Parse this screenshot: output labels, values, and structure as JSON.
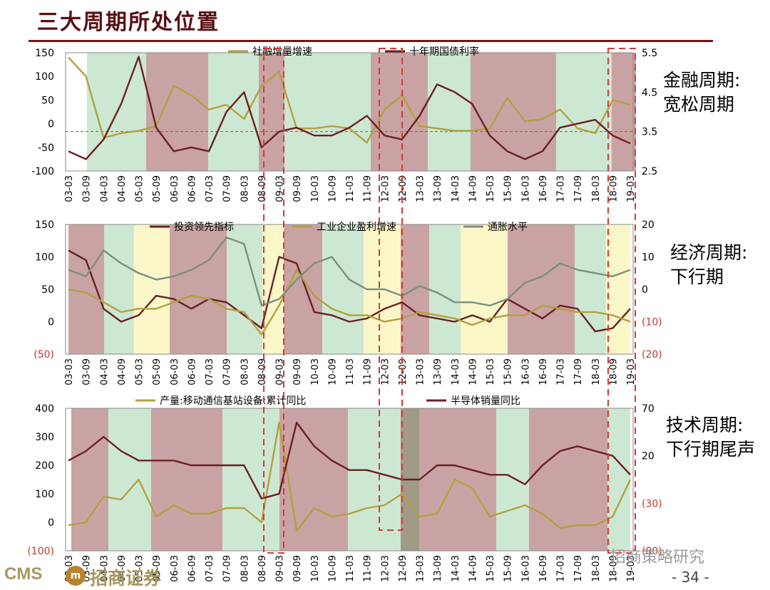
{
  "page": {
    "title": "三大周期所处位置",
    "page_number": "- 34 -",
    "logo_en": "CMS",
    "logo_badge": "m",
    "logo_cn": "招商证券",
    "watermark": "招商策略研究"
  },
  "side_labels": {
    "financial": [
      "金融周期:",
      "宽松周期"
    ],
    "economic": [
      "经济周期:",
      "下行期"
    ],
    "technology": [
      "技术周期:",
      "下行期尾声"
    ]
  },
  "colors": {
    "olive": "#b2a040",
    "maroon": "#6b1f22",
    "gray_green": "#7b8f80",
    "red_dash": "#d43a34",
    "band_green": "#cde8d2",
    "band_brown": "#c9a3a3",
    "band_yellow": "#fbf7c9",
    "band_dark": "#a09a86"
  },
  "x_tick_labels": [
    "03-03",
    "03-09",
    "04-03",
    "04-09",
    "05-03",
    "05-09",
    "06-03",
    "06-09",
    "07-03",
    "07-09",
    "08-03",
    "08-09",
    "09-03",
    "09-09",
    "10-03",
    "10-09",
    "11-03",
    "11-09",
    "12-03",
    "12-09",
    "13-03",
    "13-09",
    "14-03",
    "14-09",
    "15-03",
    "15-09",
    "16-03",
    "16-09",
    "17-03",
    "17-09",
    "18-03",
    "18-09",
    "19-03"
  ],
  "chart_data": [
    {
      "type": "line",
      "legend": [
        "社融增量增速",
        "十年期国债利率"
      ],
      "left_axis": {
        "range": [
          -100,
          150
        ],
        "ticks": [
          "150",
          "100",
          "50",
          "0",
          "-50",
          "-100"
        ]
      },
      "right_axis": {
        "range": [
          2.5,
          5.5
        ],
        "ticks": [
          "5.5",
          "4.5",
          "3.5",
          "2.5"
        ]
      },
      "reference_line": 3.5,
      "series": [
        {
          "name": "社融增量增速",
          "axis": "left",
          "color": "olive",
          "values": [
            140,
            100,
            -30,
            -20,
            -15,
            -5,
            80,
            60,
            30,
            40,
            10,
            80,
            110,
            -10,
            -10,
            -5,
            -10,
            -40,
            30,
            60,
            -5,
            -10,
            -15,
            -15,
            -10,
            55,
            5,
            10,
            30,
            -10,
            -20,
            50,
            40
          ]
        },
        {
          "name": "十年期国债利率",
          "axis": "right",
          "color": "maroon",
          "values": [
            3.0,
            2.8,
            3.3,
            4.2,
            5.4,
            3.6,
            3.0,
            3.1,
            3.0,
            4.0,
            4.5,
            3.1,
            3.5,
            3.6,
            3.4,
            3.4,
            3.6,
            3.9,
            3.4,
            3.3,
            3.9,
            4.7,
            4.5,
            4.2,
            3.4,
            3.0,
            2.8,
            3.0,
            3.6,
            3.7,
            3.8,
            3.4,
            3.2
          ]
        }
      ]
    },
    {
      "type": "line",
      "legend": [
        "投资领先指标",
        "工业企业盈利增速",
        "通胀水平"
      ],
      "left_axis": {
        "range": [
          -50,
          150
        ],
        "ticks": [
          "150",
          "100",
          "50",
          "0",
          "(50)"
        ]
      },
      "right_axis": {
        "range": [
          -20,
          20
        ],
        "ticks": [
          "20",
          "10",
          "0",
          "(10)",
          "(20)"
        ]
      },
      "series": [
        {
          "name": "投资领先指标",
          "axis": "left",
          "color": "maroon",
          "values": [
            110,
            95,
            20,
            0,
            10,
            40,
            35,
            20,
            35,
            30,
            10,
            -10,
            100,
            90,
            15,
            10,
            0,
            5,
            20,
            30,
            10,
            5,
            0,
            10,
            0,
            35,
            20,
            5,
            25,
            20,
            -15,
            -10,
            20
          ]
        },
        {
          "name": "工业企业盈利增速",
          "axis": "left",
          "color": "olive",
          "values": [
            50,
            45,
            30,
            15,
            20,
            20,
            30,
            40,
            35,
            20,
            15,
            -20,
            25,
            80,
            40,
            20,
            10,
            10,
            0,
            5,
            15,
            10,
            5,
            -5,
            5,
            10,
            10,
            25,
            20,
            15,
            15,
            10,
            0
          ]
        },
        {
          "name": "通胀水平",
          "axis": "right",
          "color": "gray_green",
          "values": [
            6,
            4,
            12,
            8,
            5,
            3,
            4,
            6,
            9,
            16,
            14,
            -5,
            -3,
            3,
            8,
            10,
            3,
            0,
            0,
            -2,
            1,
            -1,
            -4,
            -4,
            -5,
            -3,
            2,
            4,
            8,
            6,
            5,
            4,
            6
          ]
        }
      ]
    },
    {
      "type": "line",
      "legend": [
        "产量:移动通信基站设备:累计同比",
        "半导体销量同比"
      ],
      "left_axis": {
        "range": [
          -100,
          400
        ],
        "ticks": [
          "400",
          "300",
          "200",
          "100",
          "0",
          "(100)"
        ]
      },
      "right_axis": {
        "range": [
          -80,
          70
        ],
        "ticks": [
          "70",
          "20",
          "(30)",
          "(80)"
        ]
      },
      "series": [
        {
          "name": "产量:移动通信基站设备:累计同比",
          "axis": "left",
          "color": "olive",
          "values": [
            -10,
            0,
            90,
            80,
            150,
            20,
            60,
            30,
            30,
            50,
            50,
            0,
            350,
            -30,
            50,
            20,
            30,
            50,
            60,
            100,
            20,
            30,
            150,
            120,
            20,
            40,
            60,
            30,
            -20,
            -10,
            -10,
            20,
            150
          ]
        },
        {
          "name": "半导体销量同比",
          "axis": "right",
          "color": "maroon",
          "values": [
            15,
            25,
            40,
            25,
            15,
            15,
            15,
            10,
            10,
            10,
            10,
            -25,
            -20,
            55,
            30,
            15,
            5,
            5,
            0,
            -5,
            -5,
            10,
            10,
            5,
            0,
            0,
            -10,
            10,
            25,
            30,
            25,
            20,
            0
          ]
        }
      ]
    }
  ]
}
